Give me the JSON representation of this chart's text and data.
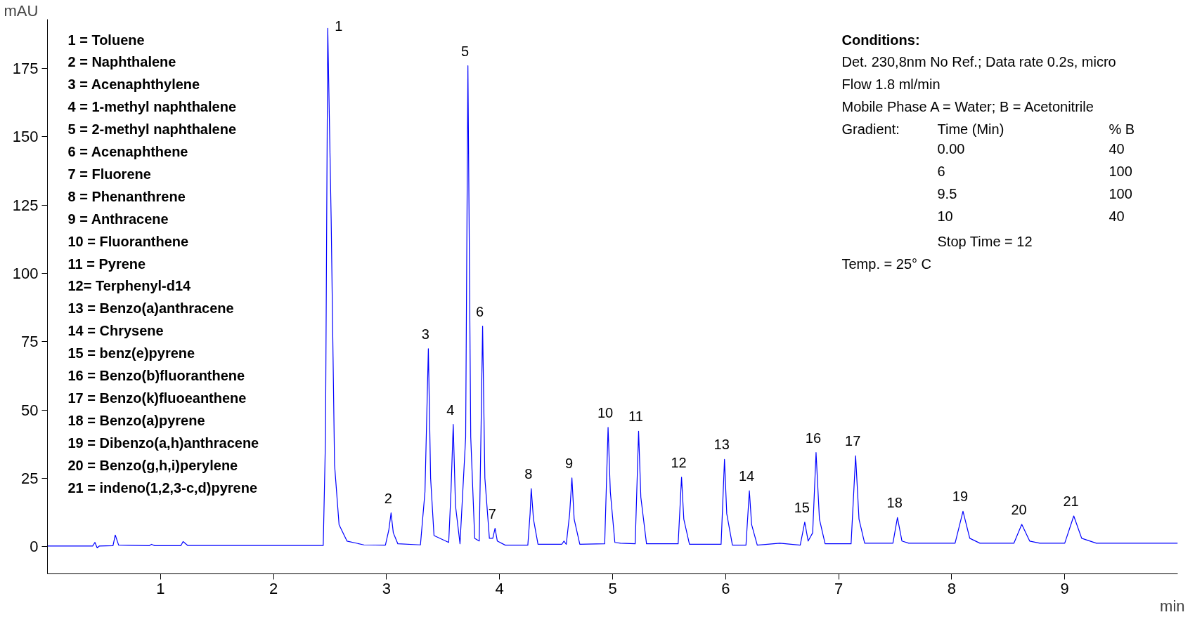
{
  "chart_data": {
    "type": "line",
    "xlabel": "min",
    "ylabel": "mAU",
    "xlim": [
      0,
      10
    ],
    "ylim": [
      -10,
      193
    ],
    "xticks": [
      1,
      2,
      3,
      4,
      5,
      6,
      7,
      8,
      9
    ],
    "yticks": [
      0,
      25,
      50,
      75,
      100,
      125,
      150,
      175
    ],
    "grid": false,
    "marker": "none",
    "line_style": "solid",
    "x": [
      0,
      0.4,
      0.42,
      0.44,
      0.46,
      0.58,
      0.6,
      0.63,
      0.9,
      0.92,
      0.95,
      1.18,
      1.2,
      1.24,
      2.44,
      2.46,
      2.48,
      2.51,
      2.54,
      2.58,
      2.65,
      2.8,
      2.99,
      3.02,
      3.04,
      3.06,
      3.1,
      3.3,
      3.34,
      3.37,
      3.39,
      3.42,
      3.55,
      3.57,
      3.59,
      3.61,
      3.65,
      3.7,
      3.72,
      3.745,
      3.78,
      3.82,
      3.835,
      3.85,
      3.87,
      3.91,
      3.94,
      3.96,
      3.98,
      4.05,
      4.25,
      4.27,
      4.28,
      4.3,
      4.34,
      4.55,
      4.57,
      4.59,
      4.62,
      4.64,
      4.66,
      4.71,
      4.93,
      4.96,
      4.98,
      5.02,
      5.07,
      5.2,
      5.23,
      5.25,
      5.3,
      5.58,
      5.61,
      5.63,
      5.68,
      5.96,
      5.99,
      6.01,
      6.06,
      6.18,
      6.21,
      6.23,
      6.28,
      6.48,
      6.66,
      6.7,
      6.73,
      6.77,
      6.8,
      6.83,
      6.88,
      7.11,
      7.15,
      7.18,
      7.23,
      7.48,
      7.52,
      7.56,
      7.62,
      8.03,
      8.1,
      8.16,
      8.25,
      8.55,
      8.62,
      8.69,
      8.78,
      9.0,
      9.08,
      9.15,
      9.28,
      10
    ],
    "series": [
      {
        "color": "#0000ff",
        "values": [
          0.2,
          0.2,
          1.5,
          -0.5,
          0.2,
          0.3,
          4.2,
          0.5,
          0.3,
          0.8,
          0.3,
          0.3,
          1.8,
          0.4,
          0.4,
          40,
          189.7,
          120,
          30,
          8,
          2,
          0.6,
          0.5,
          6,
          12.3,
          5,
          1,
          0.6,
          20,
          72.4,
          25,
          4,
          1.5,
          20,
          44.7,
          15,
          1,
          40,
          176,
          40,
          3,
          2,
          40,
          80.7,
          25,
          3,
          3,
          6.7,
          2,
          0.5,
          0.5,
          12,
          21.2,
          10,
          0.8,
          0.8,
          2,
          0.8,
          12,
          25.1,
          10,
          0.8,
          1,
          43.6,
          20,
          1.5,
          1.2,
          1,
          42.2,
          18,
          1,
          1,
          25.4,
          10,
          0.8,
          0.8,
          31.9,
          12,
          0.5,
          0.5,
          20.4,
          8,
          0.5,
          1.2,
          0.5,
          8.9,
          2,
          5,
          34.4,
          10,
          1,
          1,
          33.2,
          10,
          1.2,
          1.2,
          10.6,
          2,
          1.2,
          1.2,
          12.9,
          3,
          1.2,
          1.2,
          8.1,
          2,
          1.2,
          1.2,
          11.2,
          3,
          1.2,
          1.2
        ]
      }
    ],
    "annotations": [
      "1 = Toluene\n2 = Naphthalene\n3 = Acenaphthylene\n4 = 1-methyl naphthalene\n5 = 2-methyl naphthalene\n6 = Acenaphthene\n7 = Fluorene\n8 = Phenanthrene\n9 = Anthracene\n10 = Fluoranthene\n11 = Pyrene\n12= Terphenyl-d14\n13 = Benzo(a)anthracene\n14 = Chrysene\n15 = benz(e)pyrene\n16 = Benzo(b)fluoranthene\n17 = Benzo(k)fluoeanthene\n18 = Benzo(a)pyrene\n19 = Dibenzo(a,h)anthracene\n20 = Benzo(g,h,i)perylene\n21 = indeno(1,2,3-c,d)pyrene",
      "Conditions:\nDet. 230,8nm No Ref.; Data rate 0.2s, micro\nFlow 1.8 ml/min\nMobile Phase A = Water; B = Acetonitrile\nGradient:\tTime (Min)\t% B\n\t0.00\t40\n\t6\t100\n\t9.5\t100\n\t10\t40\n\tStop Time = 12\nTemp. = 25° C",
      {
        "text": "1",
        "x": 2.48,
        "y": 189.7
      },
      {
        "text": "2",
        "x": 3.04,
        "y": 12.3
      },
      {
        "text": "3",
        "x": 3.37,
        "y": 72.4
      },
      {
        "text": "4",
        "x": 3.59,
        "y": 44.7
      },
      {
        "text": "5",
        "x": 3.72,
        "y": 176
      },
      {
        "text": "6",
        "x": 3.85,
        "y": 80.7
      },
      {
        "text": "7",
        "x": 3.96,
        "y": 6.7
      },
      {
        "text": "8",
        "x": 4.28,
        "y": 21.2
      },
      {
        "text": "9",
        "x": 4.64,
        "y": 25.1
      },
      {
        "text": "10",
        "x": 4.96,
        "y": 43.6
      },
      {
        "text": "11",
        "x": 5.23,
        "y": 42.2
      },
      {
        "text": "12",
        "x": 5.61,
        "y": 25.4
      },
      {
        "text": "13",
        "x": 5.99,
        "y": 31.9
      },
      {
        "text": "14",
        "x": 6.21,
        "y": 20.4
      },
      {
        "text": "15",
        "x": 6.7,
        "y": 8.9
      },
      {
        "text": "16",
        "x": 6.8,
        "y": 34.4
      },
      {
        "text": "17",
        "x": 7.15,
        "y": 33.2
      },
      {
        "text": "18",
        "x": 7.52,
        "y": 10.6
      },
      {
        "text": "19",
        "x": 8.1,
        "y": 12.9
      },
      {
        "text": "20",
        "x": 8.62,
        "y": 8.1
      },
      {
        "text": "21",
        "x": 9.08,
        "y": 11.2
      }
    ]
  }
}
